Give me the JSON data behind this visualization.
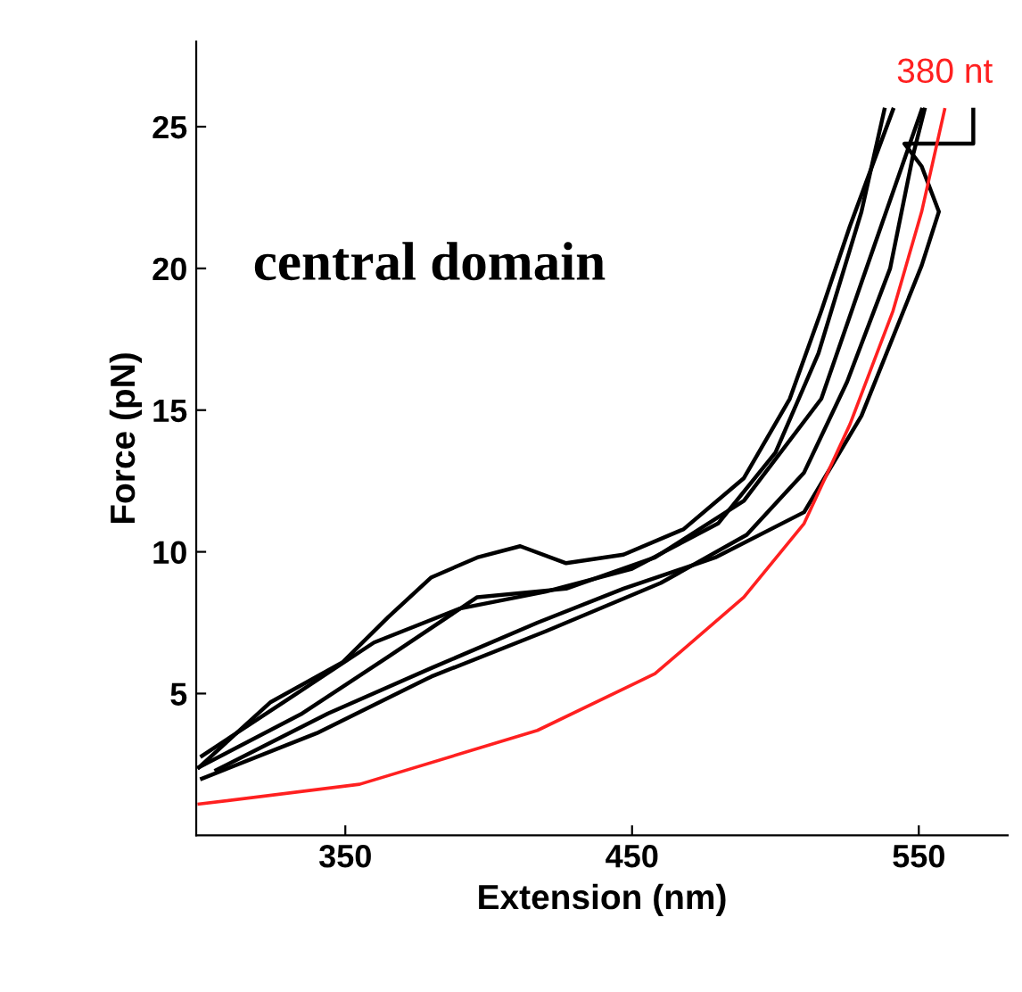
{
  "chart_data": {
    "type": "line",
    "xlabel": "Extension (nm)",
    "ylabel": "Force (pN)",
    "xlim": [
      298,
      581
    ],
    "ylim": [
      0,
      28
    ],
    "xticks": [
      350,
      450,
      550
    ],
    "yticks": [
      5,
      10,
      15,
      20,
      25
    ],
    "grid": false,
    "legend": false,
    "marker": "none",
    "line_style": "solid",
    "annotations": [
      "central domain"
    ],
    "series": [
      {
        "color": "#000000",
        "x": [
          299,
          324,
          349,
          365,
          380,
          396,
          411,
          427,
          447,
          468,
          489,
          505,
          516,
          526,
          541
        ],
        "values": [
          2.4,
          4.7,
          6.1,
          7.7,
          9.1,
          9.8,
          10.2,
          9.6,
          9.9,
          10.8,
          12.6,
          15.4,
          18.5,
          21.5,
          25.6
        ]
      },
      {
        "color": "#000000",
        "x": [
          299,
          335,
          365,
          396,
          427,
          458,
          489,
          516,
          530,
          551
        ],
        "values": [
          2.4,
          4.3,
          6.3,
          8.4,
          8.7,
          9.8,
          11.8,
          15.4,
          19.5,
          25.6
        ]
      },
      {
        "color": "#000000",
        "x": [
          305,
          344,
          380,
          417,
          447,
          479,
          510,
          530,
          551,
          557,
          551,
          545,
          561,
          569,
          569
        ],
        "values": [
          2.3,
          4.3,
          5.9,
          7.5,
          8.7,
          9.8,
          11.4,
          14.8,
          20.1,
          22.0,
          23.6,
          24.4,
          24.4,
          24.4,
          25.6
        ]
      },
      {
        "color": "#000000",
        "x": [
          300,
          330,
          360,
          390,
          420,
          450,
          480,
          500,
          515,
          530,
          538
        ],
        "values": [
          2.8,
          4.8,
          6.8,
          8.0,
          8.6,
          9.4,
          11.0,
          13.5,
          17.0,
          22.0,
          25.6
        ]
      },
      {
        "color": "#000000",
        "x": [
          300,
          340,
          380,
          420,
          460,
          490,
          510,
          525,
          540,
          548,
          552
        ],
        "values": [
          2.0,
          3.6,
          5.6,
          7.2,
          8.9,
          10.6,
          12.8,
          16.0,
          20.0,
          24.0,
          25.6
        ]
      },
      {
        "name": "380 nt",
        "color": "#ff2020",
        "x": [
          299,
          355,
          417,
          458,
          489,
          510,
          526,
          541,
          551,
          559
        ],
        "values": [
          1.1,
          1.8,
          3.7,
          5.7,
          8.4,
          11.0,
          14.5,
          18.5,
          22.0,
          25.6
        ]
      }
    ]
  }
}
